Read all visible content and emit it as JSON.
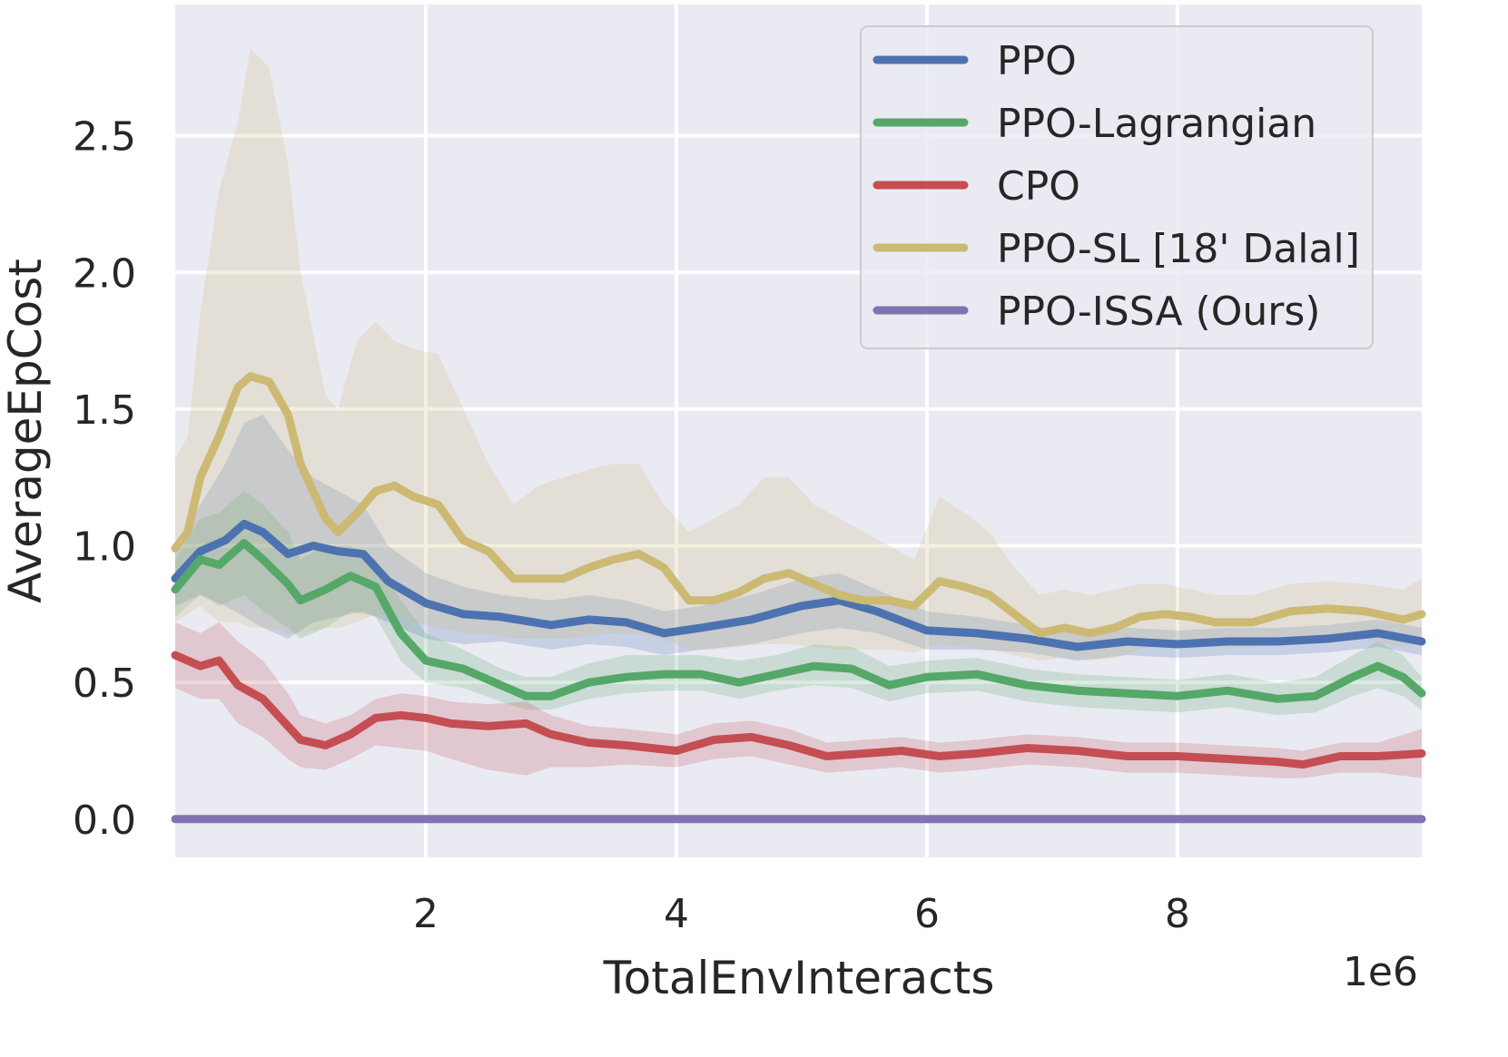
{
  "chart_data": {
    "type": "line",
    "title": "",
    "xlabel": "TotalEnvInteracts",
    "ylabel": "AverageEpCost",
    "x_offset_label": "1e6",
    "xlim": [
      0.0,
      9.95
    ],
    "ylim": [
      -0.14,
      2.98
    ],
    "xticks": [
      2,
      4,
      6,
      8
    ],
    "xtick_labels": [
      "2",
      "4",
      "6",
      "8"
    ],
    "yticks": [
      0.0,
      0.5,
      1.0,
      1.5,
      2.0,
      2.5
    ],
    "ytick_labels": [
      "0.0",
      "0.5",
      "1.0",
      "1.5",
      "2.0",
      "2.5"
    ],
    "grid": true,
    "legend_position": "top-right",
    "colors": {
      "background": "#eaeaf2",
      "grid": "#ffffff",
      "legend_bg": "#eaeaf2",
      "legend_border": "#cccccc"
    },
    "series": [
      {
        "name": "PPO",
        "color": "#4c72b0",
        "x": [
          0,
          0.2,
          0.4,
          0.55,
          0.7,
          0.9,
          1.1,
          1.3,
          1.5,
          1.7,
          2.0,
          2.3,
          2.6,
          3.0,
          3.3,
          3.6,
          3.9,
          4.2,
          4.6,
          5.0,
          5.3,
          5.6,
          6.0,
          6.4,
          6.8,
          7.2,
          7.6,
          8.0,
          8.4,
          8.8,
          9.2,
          9.6,
          9.95
        ],
        "y": [
          0.88,
          0.98,
          1.02,
          1.08,
          1.05,
          0.97,
          1.0,
          0.98,
          0.97,
          0.87,
          0.79,
          0.75,
          0.74,
          0.71,
          0.73,
          0.72,
          0.68,
          0.7,
          0.73,
          0.78,
          0.8,
          0.76,
          0.69,
          0.68,
          0.66,
          0.63,
          0.65,
          0.64,
          0.65,
          0.65,
          0.66,
          0.68,
          0.65
        ],
        "upper": [
          0.98,
          1.15,
          1.3,
          1.45,
          1.48,
          1.35,
          1.25,
          1.2,
          1.15,
          1.0,
          0.9,
          0.85,
          0.82,
          0.8,
          0.82,
          0.8,
          0.76,
          0.78,
          0.82,
          0.88,
          0.9,
          0.84,
          0.76,
          0.74,
          0.71,
          0.68,
          0.7,
          0.69,
          0.7,
          0.7,
          0.71,
          0.73,
          0.7
        ],
        "lower": [
          0.78,
          0.82,
          0.78,
          0.74,
          0.7,
          0.66,
          0.72,
          0.74,
          0.76,
          0.72,
          0.66,
          0.64,
          0.65,
          0.62,
          0.64,
          0.63,
          0.6,
          0.62,
          0.64,
          0.68,
          0.7,
          0.68,
          0.62,
          0.62,
          0.61,
          0.58,
          0.6,
          0.59,
          0.6,
          0.6,
          0.61,
          0.63,
          0.6
        ]
      },
      {
        "name": "PPO-Lagrangian",
        "color": "#55a868",
        "x": [
          0,
          0.2,
          0.35,
          0.55,
          0.7,
          0.9,
          1.0,
          1.2,
          1.4,
          1.6,
          1.8,
          2.0,
          2.3,
          2.6,
          2.8,
          3.0,
          3.3,
          3.6,
          3.9,
          4.2,
          4.5,
          4.8,
          5.1,
          5.4,
          5.7,
          6.0,
          6.4,
          6.8,
          7.2,
          7.6,
          8.0,
          8.4,
          8.8,
          9.1,
          9.4,
          9.6,
          9.8,
          9.95
        ],
        "y": [
          0.84,
          0.95,
          0.93,
          1.01,
          0.95,
          0.86,
          0.8,
          0.84,
          0.89,
          0.85,
          0.68,
          0.58,
          0.55,
          0.49,
          0.45,
          0.45,
          0.5,
          0.52,
          0.53,
          0.53,
          0.5,
          0.53,
          0.56,
          0.55,
          0.49,
          0.52,
          0.53,
          0.49,
          0.47,
          0.46,
          0.45,
          0.47,
          0.44,
          0.45,
          0.52,
          0.56,
          0.52,
          0.46
        ],
        "upper": [
          0.95,
          1.1,
          1.12,
          1.2,
          1.15,
          1.05,
          0.95,
          1.0,
          1.0,
          0.95,
          0.8,
          0.68,
          0.62,
          0.55,
          0.52,
          0.52,
          0.57,
          0.6,
          0.6,
          0.6,
          0.58,
          0.6,
          0.64,
          0.63,
          0.56,
          0.58,
          0.59,
          0.55,
          0.53,
          0.52,
          0.51,
          0.53,
          0.5,
          0.52,
          0.6,
          0.65,
          0.6,
          0.52
        ],
        "lower": [
          0.74,
          0.82,
          0.78,
          0.82,
          0.76,
          0.7,
          0.66,
          0.7,
          0.76,
          0.74,
          0.58,
          0.5,
          0.48,
          0.43,
          0.4,
          0.4,
          0.44,
          0.46,
          0.47,
          0.47,
          0.44,
          0.47,
          0.49,
          0.48,
          0.43,
          0.46,
          0.47,
          0.43,
          0.41,
          0.4,
          0.39,
          0.41,
          0.38,
          0.39,
          0.45,
          0.48,
          0.45,
          0.4
        ]
      },
      {
        "name": "CPO",
        "color": "#c44e52",
        "x": [
          0,
          0.2,
          0.35,
          0.5,
          0.7,
          0.9,
          1.0,
          1.2,
          1.4,
          1.6,
          1.8,
          2.0,
          2.2,
          2.5,
          2.8,
          3.0,
          3.3,
          3.6,
          4.0,
          4.3,
          4.6,
          4.9,
          5.2,
          5.5,
          5.8,
          6.1,
          6.4,
          6.8,
          7.2,
          7.6,
          8.0,
          8.4,
          8.8,
          9.0,
          9.3,
          9.6,
          9.95
        ],
        "y": [
          0.6,
          0.56,
          0.58,
          0.49,
          0.44,
          0.34,
          0.29,
          0.27,
          0.31,
          0.37,
          0.38,
          0.37,
          0.35,
          0.34,
          0.35,
          0.31,
          0.28,
          0.27,
          0.25,
          0.29,
          0.3,
          0.27,
          0.23,
          0.24,
          0.25,
          0.23,
          0.24,
          0.26,
          0.25,
          0.23,
          0.23,
          0.22,
          0.21,
          0.2,
          0.23,
          0.23,
          0.24
        ],
        "upper": [
          0.72,
          0.68,
          0.72,
          0.65,
          0.58,
          0.46,
          0.38,
          0.35,
          0.38,
          0.44,
          0.46,
          0.45,
          0.43,
          0.42,
          0.43,
          0.38,
          0.34,
          0.33,
          0.31,
          0.35,
          0.36,
          0.33,
          0.28,
          0.29,
          0.3,
          0.28,
          0.29,
          0.31,
          0.3,
          0.28,
          0.28,
          0.27,
          0.26,
          0.25,
          0.28,
          0.28,
          0.33
        ],
        "lower": [
          0.48,
          0.44,
          0.44,
          0.35,
          0.3,
          0.22,
          0.19,
          0.18,
          0.22,
          0.27,
          0.26,
          0.25,
          0.22,
          0.18,
          0.16,
          0.19,
          0.19,
          0.2,
          0.19,
          0.22,
          0.23,
          0.2,
          0.17,
          0.18,
          0.19,
          0.17,
          0.18,
          0.2,
          0.19,
          0.17,
          0.17,
          0.16,
          0.15,
          0.15,
          0.17,
          0.17,
          0.15
        ]
      },
      {
        "name": "PPO-SL [18' Dalal]",
        "color": "#ccb974",
        "x": [
          0,
          0.1,
          0.2,
          0.35,
          0.5,
          0.6,
          0.75,
          0.9,
          1.0,
          1.2,
          1.3,
          1.45,
          1.6,
          1.75,
          1.9,
          2.1,
          2.3,
          2.5,
          2.7,
          2.9,
          3.1,
          3.3,
          3.5,
          3.7,
          3.9,
          4.1,
          4.3,
          4.5,
          4.7,
          4.9,
          5.1,
          5.3,
          5.5,
          5.7,
          5.9,
          6.1,
          6.3,
          6.5,
          6.7,
          6.9,
          7.1,
          7.3,
          7.5,
          7.7,
          7.9,
          8.1,
          8.3,
          8.6,
          8.9,
          9.2,
          9.5,
          9.8,
          9.95
        ],
        "y": [
          0.99,
          1.05,
          1.25,
          1.4,
          1.58,
          1.62,
          1.6,
          1.48,
          1.3,
          1.1,
          1.05,
          1.12,
          1.2,
          1.22,
          1.18,
          1.15,
          1.02,
          0.98,
          0.88,
          0.88,
          0.88,
          0.92,
          0.95,
          0.97,
          0.92,
          0.8,
          0.8,
          0.83,
          0.88,
          0.9,
          0.86,
          0.82,
          0.8,
          0.8,
          0.78,
          0.87,
          0.85,
          0.82,
          0.75,
          0.68,
          0.7,
          0.68,
          0.7,
          0.74,
          0.75,
          0.74,
          0.72,
          0.72,
          0.76,
          0.77,
          0.76,
          0.73,
          0.75
        ],
        "upper": [
          1.32,
          1.4,
          1.85,
          2.3,
          2.55,
          2.82,
          2.75,
          2.4,
          2.0,
          1.55,
          1.5,
          1.75,
          1.82,
          1.75,
          1.72,
          1.7,
          1.5,
          1.3,
          1.15,
          1.22,
          1.25,
          1.28,
          1.3,
          1.3,
          1.15,
          1.05,
          1.1,
          1.15,
          1.25,
          1.25,
          1.15,
          1.1,
          1.05,
          1.0,
          0.95,
          1.18,
          1.12,
          1.05,
          0.92,
          0.82,
          0.84,
          0.82,
          0.84,
          0.86,
          0.86,
          0.84,
          0.82,
          0.82,
          0.86,
          0.87,
          0.86,
          0.84,
          0.88
        ],
        "lower": [
          0.72,
          0.75,
          0.78,
          0.72,
          0.72,
          0.7,
          0.7,
          0.68,
          0.68,
          0.7,
          0.7,
          0.72,
          0.75,
          0.75,
          0.72,
          0.7,
          0.68,
          0.68,
          0.66,
          0.66,
          0.66,
          0.67,
          0.68,
          0.68,
          0.66,
          0.62,
          0.62,
          0.63,
          0.64,
          0.64,
          0.63,
          0.62,
          0.62,
          0.62,
          0.61,
          0.64,
          0.63,
          0.62,
          0.6,
          0.58,
          0.59,
          0.58,
          0.59,
          0.62,
          0.64,
          0.64,
          0.63,
          0.63,
          0.66,
          0.67,
          0.66,
          0.63,
          0.64
        ]
      },
      {
        "name": "PPO-ISSA (Ours)",
        "color": "#8172b2",
        "x": [
          0,
          9.95
        ],
        "y": [
          0.0,
          0.0
        ]
      }
    ]
  }
}
